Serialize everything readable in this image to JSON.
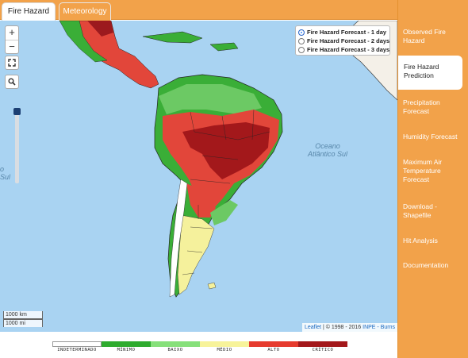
{
  "tabs": {
    "fire_hazard": "Fire Hazard",
    "meteorology": "Meteorology"
  },
  "map": {
    "zoom_in": "+",
    "zoom_out": "−",
    "forecast_options": [
      {
        "label": "Fire Hazard Forecast - 1 day",
        "selected": true
      },
      {
        "label": "Fire Hazard Forecast - 2 days",
        "selected": false
      },
      {
        "label": "Fire Hazard Forecast - 3 days",
        "selected": false
      }
    ],
    "ocean_atlantic": "Oceano\nAtlântico Sul",
    "ocean_pacific": "o\nSul",
    "scale": {
      "km": "1000 km",
      "mi": "1000 mi"
    },
    "attribution": {
      "leaflet": "Leaflet",
      "text": " | © 1998 - 2016 ",
      "inpe": "INPE - Burns"
    }
  },
  "legend": {
    "labels": [
      "INDETERMINADO",
      "MÍNIMO",
      "BAIXO",
      "MÉDIO",
      "ALTO",
      "CRÍTICO"
    ],
    "colors": [
      "#ffffff",
      "#2eab2e",
      "#86e07a",
      "#f7f39a",
      "#e63b2e",
      "#a3181b"
    ]
  },
  "sidebar": {
    "items": [
      {
        "label": "Observed Fire Hazard",
        "active": false
      },
      {
        "label": "Fire Hazard Prediction",
        "active": true
      },
      {
        "label": "Precipitation Forecast",
        "active": false
      },
      {
        "label": "Humidity Forecast",
        "active": false
      },
      {
        "label": "Maximum Air Temperature Forecast",
        "active": false
      },
      {
        "label": "Download - Shapefile",
        "active": false
      },
      {
        "label": "Hit Analysis",
        "active": false
      },
      {
        "label": "Documentation",
        "active": false
      }
    ]
  }
}
